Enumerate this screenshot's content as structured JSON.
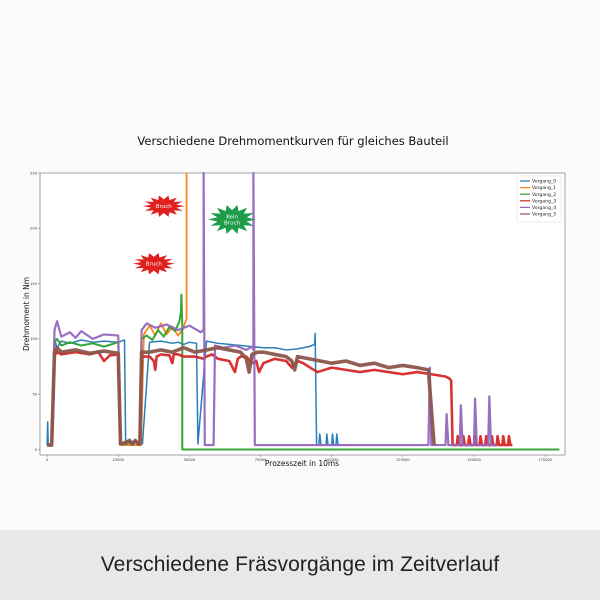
{
  "caption": "Verschiedene Fräsvorgänge im Zeitverlauf",
  "chart_data": {
    "type": "line",
    "title": "Verschiedene Drehmomentkurven für gleiches Bauteil",
    "xlabel": "Prozesszeit in 10ms",
    "ylabel": "Drehmoment in Nm",
    "xlim": [
      -2500,
      182000
    ],
    "ylim": [
      -5,
      250
    ],
    "xticks": [
      0,
      25000,
      50000,
      75000,
      100000,
      125000,
      150000,
      175000
    ],
    "xtick_labels": [
      "0",
      "25000",
      "50000",
      "75000",
      "100000",
      "125000",
      "150000",
      "175000"
    ],
    "yticks": [
      0,
      50,
      100,
      150,
      200,
      250
    ],
    "ytick_labels": [
      "0",
      "50",
      "100",
      "150",
      "200",
      "250"
    ],
    "grid": false,
    "legend_position": "top-right",
    "series": [
      {
        "name": "Vorgang_0",
        "color": "#1f77b4",
        "band": 1.5,
        "x": [
          0,
          200,
          400,
          1000,
          1800,
          2600,
          3500,
          5000,
          8000,
          12000,
          16000,
          20000,
          25000,
          27200,
          27600,
          30000,
          30500,
          32000,
          33000,
          33500,
          36000,
          40000,
          44000,
          46000,
          48000,
          50000,
          52500,
          53000,
          56000,
          60000,
          64000,
          68000,
          72000,
          76000,
          80000,
          84000,
          88000,
          92000,
          94000,
          94200,
          94700,
          95500,
          95800,
          96300,
          98000,
          98300,
          98700,
          100000,
          100300,
          100700,
          101500,
          101800,
          102200,
          104000,
          106000
        ],
        "y": [
          4,
          25,
          4,
          4,
          4,
          100,
          92,
          98,
          96,
          99,
          97,
          98,
          97,
          99,
          5,
          5,
          8,
          5,
          8,
          5,
          97,
          98,
          96,
          97,
          95,
          97,
          96,
          5,
          98,
          96,
          95,
          94,
          93,
          92,
          92,
          90,
          91,
          93,
          95,
          105,
          4,
          4,
          14,
          4,
          4,
          14,
          4,
          4,
          14,
          4,
          4,
          14,
          4,
          4,
          4
        ]
      },
      {
        "name": "Vorgang_1",
        "color": "#ff7f0e",
        "band": 1.8,
        "x": [
          26000,
          28000,
          30000,
          32000,
          33000,
          34000,
          36000,
          38000,
          40000,
          42000,
          44000,
          46000,
          47500,
          48000,
          48500,
          49000,
          49000
        ],
        "y": [
          4,
          4,
          4,
          4,
          4,
          104,
          112,
          103,
          114,
          104,
          111,
          103,
          108,
          110,
          115,
          118,
          250
        ]
      },
      {
        "name": "Vorgang_2",
        "color": "#2ca02c",
        "band": 2.0,
        "x": [
          0,
          1000,
          1600,
          2600,
          3500,
          5000,
          8000,
          12000,
          16000,
          20000,
          25000,
          25800,
          26200,
          28000,
          29000,
          30000,
          31000,
          32000,
          32600,
          33200,
          35000,
          37000,
          39000,
          41000,
          43000,
          45000,
          46500,
          47000,
          47200,
          47500,
          47500,
          50000,
          80000,
          120000,
          160000,
          180000
        ],
        "y": [
          4,
          4,
          4,
          97,
          100,
          94,
          97,
          94,
          96,
          93,
          97,
          5,
          5,
          5,
          9,
          5,
          9,
          5,
          5,
          100,
          103,
          99,
          108,
          102,
          111,
          107,
          116,
          124,
          140,
          112,
          0,
          0,
          0,
          0,
          0,
          0
        ]
      },
      {
        "name": "Vorgang_3",
        "color": "#d62728",
        "band": 2.6,
        "x": [
          0,
          1000,
          1600,
          2600,
          3500,
          5000,
          10000,
          15000,
          18000,
          20000,
          22000,
          25000,
          25800,
          26200,
          29000,
          30000,
          31000,
          32000,
          32600,
          33200,
          36000,
          37500,
          38000,
          38500,
          40000,
          43000,
          44000,
          44500,
          46000,
          48000,
          52000,
          55000,
          56000,
          58000,
          60000,
          64000,
          66000,
          67000,
          68000,
          70000,
          72000,
          73500,
          74500,
          76000,
          78000,
          80000,
          84000,
          86000,
          88000,
          90000,
          95000,
          100000,
          105000,
          110000,
          115000,
          120000,
          125000,
          130000,
          135000,
          140000,
          141500,
          142000,
          142500,
          144000,
          144300,
          144800,
          146000,
          146300,
          146800,
          148000,
          148300,
          148800,
          150000,
          150300,
          150800,
          152000,
          152300,
          152800,
          154000,
          154300,
          154800,
          156000,
          156300,
          156800,
          158000,
          158300,
          158800,
          160000,
          160300,
          160800,
          162000,
          162300,
          162800,
          163500
        ],
        "y": [
          4,
          4,
          4,
          85,
          88,
          86,
          88,
          86,
          88,
          80,
          85,
          86,
          5,
          5,
          8,
          5,
          8,
          5,
          5,
          84,
          84,
          80,
          72,
          84,
          86,
          85,
          78,
          86,
          86,
          84,
          84,
          82,
          84,
          86,
          82,
          80,
          70,
          82,
          84,
          84,
          78,
          80,
          70,
          78,
          80,
          82,
          80,
          74,
          80,
          78,
          70,
          74,
          72,
          70,
          72,
          70,
          68,
          70,
          68,
          66,
          64,
          62,
          4,
          4,
          12,
          4,
          4,
          12,
          4,
          4,
          12,
          4,
          4,
          12,
          4,
          4,
          12,
          4,
          4,
          12,
          4,
          4,
          12,
          4,
          4,
          12,
          4,
          4,
          12,
          4,
          4,
          12,
          4,
          4
        ]
      },
      {
        "name": "Vorgang_4",
        "color": "#9467bd",
        "band": 2.2,
        "x": [
          0,
          1000,
          1600,
          2600,
          3500,
          5000,
          8000,
          10000,
          12000,
          16000,
          20000,
          25000,
          25800,
          26200,
          29000,
          30000,
          31000,
          32000,
          32600,
          33200,
          35000,
          38000,
          42000,
          46000,
          50000,
          54000,
          55000,
          55000,
          55400,
          56000,
          57000,
          58000,
          58500,
          59000,
          62000,
          66000,
          70000,
          72000,
          72500,
          72500,
          73000,
          74000,
          78000,
          82000,
          86000,
          90000,
          95000,
          100000,
          105000,
          110000,
          114000,
          120000,
          125000,
          130000,
          134000,
          134500,
          135000,
          136000,
          140000,
          140400,
          141000,
          142000,
          145000,
          145400,
          146000,
          148000,
          150000,
          150400,
          151000,
          153000,
          155000,
          155400,
          156000,
          158000
        ],
        "y": [
          4,
          4,
          4,
          108,
          116,
          102,
          106,
          101,
          107,
          100,
          104,
          103,
          5,
          5,
          8,
          5,
          8,
          5,
          5,
          108,
          114,
          110,
          113,
          108,
          112,
          106,
          108,
          250,
          4,
          4,
          4,
          4,
          4,
          94,
          92,
          94,
          90,
          93,
          90,
          250,
          4,
          4,
          4,
          4,
          4,
          4,
          4,
          4,
          4,
          4,
          4,
          4,
          4,
          4,
          4,
          74,
          4,
          4,
          4,
          32,
          4,
          4,
          4,
          40,
          4,
          4,
          4,
          46,
          4,
          4,
          4,
          48,
          4,
          4
        ]
      },
      {
        "name": "Vorgang_5",
        "color": "#8c564b",
        "band": 3.6,
        "x": [
          0,
          1000,
          1600,
          2600,
          3500,
          5000,
          10000,
          15000,
          20000,
          25000,
          25800,
          26200,
          29000,
          30000,
          31000,
          32000,
          32600,
          33200,
          36000,
          40000,
          44000,
          48000,
          52000,
          56000,
          60000,
          64000,
          68000,
          70000,
          71000,
          72000,
          74000,
          76000,
          80000,
          84000,
          86000,
          87000,
          88000,
          92000,
          96000,
          100000,
          105000,
          110000,
          115000,
          120000,
          125000,
          130000,
          134000,
          136000
        ],
        "y": [
          4,
          4,
          4,
          88,
          92,
          88,
          90,
          87,
          89,
          87,
          5,
          5,
          8,
          5,
          8,
          5,
          5,
          88,
          88,
          90,
          88,
          92,
          88,
          90,
          92,
          90,
          88,
          82,
          70,
          86,
          88,
          88,
          86,
          84,
          80,
          72,
          84,
          82,
          80,
          78,
          80,
          76,
          78,
          74,
          76,
          74,
          72,
          4
        ]
      }
    ],
    "annotations": [
      {
        "lines": [
          "Bruch"
        ],
        "x": 41000,
        "y": 220,
        "color": "#e0201f"
      },
      {
        "lines": [
          "Bruch"
        ],
        "x": 37500,
        "y": 168,
        "color": "#e0201f"
      },
      {
        "lines": [
          "Kein",
          "Bruch"
        ],
        "x": 65000,
        "y": 208,
        "color": "#1e9c4a"
      }
    ]
  }
}
